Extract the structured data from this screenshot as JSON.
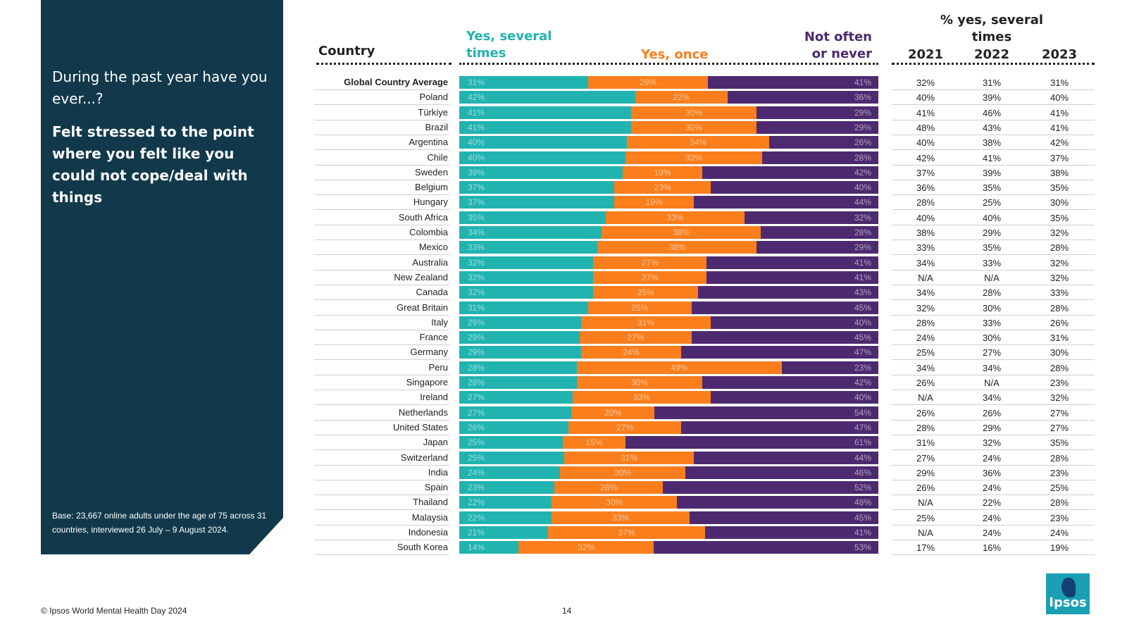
{
  "left_panel": {
    "question": "During the past year have you ever...?",
    "headline": "Felt stressed to the point where you felt like you could not cope/deal with things",
    "base_note": "Base: 23,667 online adults under the age of 75 across 31 countries, interviewed 26 July – 9 August 2024."
  },
  "headers": {
    "country": "Country",
    "yes_several": "Yes, several times",
    "yes_once": "Yes, once",
    "not_often": "Not often or never",
    "pct_yes_several": "% yes, several times",
    "years": [
      "2021",
      "2022",
      "2023"
    ]
  },
  "colors": {
    "yes_several": "#21b3b0",
    "yes_once": "#fa7e1c",
    "not_often": "#4d2a70",
    "panel": "#11394b"
  },
  "chart_data": {
    "type": "bar",
    "stacked": true,
    "orientation": "horizontal",
    "categories": [
      "Global Country Average",
      "Poland",
      "Türkiye",
      "Brazil",
      "Argentina",
      "Chile",
      "Sweden",
      "Belgium",
      "Hungary",
      "South Africa",
      "Colombia",
      "Mexico",
      "Australia",
      "New Zealand",
      "Canada",
      "Great Britain",
      "Italy",
      "France",
      "Germany",
      "Peru",
      "Singapore",
      "Ireland",
      "Netherlands",
      "United States",
      "Japan",
      "Switzerland",
      "India",
      "Spain",
      "Thailand",
      "Malaysia",
      "Indonesia",
      "South Korea"
    ],
    "series": [
      {
        "name": "Yes, several times",
        "values": [
          31,
          42,
          41,
          41,
          40,
          40,
          39,
          37,
          37,
          35,
          34,
          33,
          32,
          32,
          32,
          31,
          29,
          29,
          29,
          28,
          28,
          27,
          27,
          26,
          25,
          25,
          24,
          23,
          22,
          22,
          21,
          14
        ]
      },
      {
        "name": "Yes, once",
        "values": [
          29,
          22,
          30,
          30,
          34,
          33,
          19,
          23,
          19,
          33,
          38,
          38,
          27,
          27,
          25,
          25,
          31,
          27,
          24,
          49,
          30,
          33,
          20,
          27,
          15,
          31,
          30,
          26,
          30,
          33,
          37,
          32
        ]
      },
      {
        "name": "Not often or never",
        "values": [
          41,
          36,
          29,
          29,
          26,
          28,
          42,
          40,
          44,
          32,
          28,
          29,
          41,
          41,
          43,
          45,
          40,
          45,
          47,
          23,
          42,
          40,
          54,
          47,
          61,
          44,
          46,
          52,
          48,
          45,
          41,
          53
        ]
      }
    ],
    "value_suffix": "%"
  },
  "trend_table": {
    "rows": [
      [
        "32%",
        "31%",
        "31%"
      ],
      [
        "40%",
        "39%",
        "40%"
      ],
      [
        "41%",
        "46%",
        "41%"
      ],
      [
        "48%",
        "43%",
        "41%"
      ],
      [
        "40%",
        "38%",
        "42%"
      ],
      [
        "42%",
        "41%",
        "37%"
      ],
      [
        "37%",
        "39%",
        "38%"
      ],
      [
        "36%",
        "35%",
        "35%"
      ],
      [
        "28%",
        "25%",
        "30%"
      ],
      [
        "40%",
        "40%",
        "35%"
      ],
      [
        "38%",
        "29%",
        "32%"
      ],
      [
        "33%",
        "35%",
        "28%"
      ],
      [
        "34%",
        "33%",
        "32%"
      ],
      [
        "N/A",
        "N/A",
        "32%"
      ],
      [
        "34%",
        "28%",
        "33%"
      ],
      [
        "32%",
        "30%",
        "28%"
      ],
      [
        "28%",
        "33%",
        "26%"
      ],
      [
        "24%",
        "30%",
        "31%"
      ],
      [
        "25%",
        "27%",
        "30%"
      ],
      [
        "34%",
        "34%",
        "28%"
      ],
      [
        "26%",
        "N/A",
        "23%"
      ],
      [
        "N/A",
        "34%",
        "32%"
      ],
      [
        "26%",
        "26%",
        "27%"
      ],
      [
        "28%",
        "29%",
        "27%"
      ],
      [
        "31%",
        "32%",
        "35%"
      ],
      [
        "27%",
        "24%",
        "28%"
      ],
      [
        "29%",
        "36%",
        "23%"
      ],
      [
        "26%",
        "24%",
        "25%"
      ],
      [
        "N/A",
        "22%",
        "28%"
      ],
      [
        "25%",
        "24%",
        "23%"
      ],
      [
        "N/A",
        "24%",
        "24%"
      ],
      [
        "17%",
        "16%",
        "19%"
      ]
    ]
  },
  "footer": {
    "copyright": "© Ipsos World Mental Health Day 2024",
    "page_number": "14"
  },
  "logo": {
    "text": "Ipsos",
    "icon": "ipsos-logo-icon"
  }
}
